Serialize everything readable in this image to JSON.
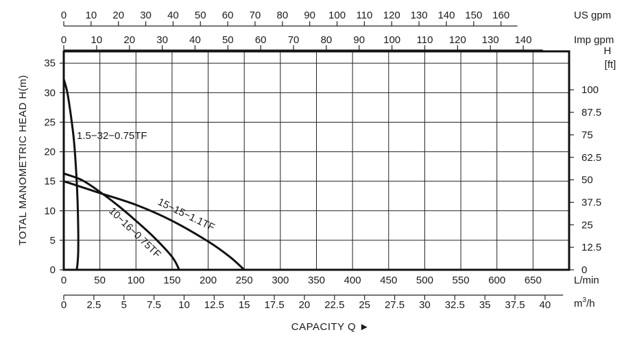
{
  "chart_data": {
    "type": "line",
    "title": "",
    "xlabel": "CAPACITY Q ►",
    "ylabel": "TOTAL MANOMETRIC HEAD H(m)",
    "right_axis_label": "H\n[ft]",
    "right_axis_label_lines": [
      "H",
      "[ft]"
    ],
    "x_unit": "L/min",
    "xlim": [
      0,
      700
    ],
    "ylim": [
      0,
      37
    ],
    "grid": true,
    "x_ticks": [
      0,
      50,
      100,
      150,
      200,
      250,
      300,
      350,
      400,
      450,
      500,
      550,
      600,
      650
    ],
    "y_ticks": [
      0,
      5,
      10,
      15,
      20,
      25,
      30,
      35
    ],
    "right_ticks": [
      "0",
      "12.5",
      "25",
      "37.5",
      "50",
      "62.5",
      "75",
      "87.5",
      "100"
    ],
    "secondary_axes": [
      {
        "name": "US gpm",
        "ticks": [
          0,
          10,
          20,
          30,
          40,
          50,
          60,
          70,
          80,
          90,
          100,
          110,
          120,
          130,
          140,
          150,
          160
        ]
      },
      {
        "name": "Imp gpm",
        "ticks": [
          0,
          10,
          20,
          30,
          40,
          50,
          60,
          70,
          80,
          90,
          100,
          110,
          120,
          130,
          140
        ]
      },
      {
        "name": "m³/h",
        "unit_base": "m",
        "unit_sup": "3",
        "unit_suffix": "/h",
        "ticks": [
          "0",
          "2.5",
          "5",
          "7.5",
          "10",
          "12.5",
          "15",
          "17.5",
          "20",
          "22.5",
          "25",
          "27.5",
          "30",
          "32.5",
          "35",
          "37.5",
          "40"
        ]
      }
    ],
    "series": [
      {
        "name": "1.5-32-0.75TF",
        "label": "1.5−32−0.75TF",
        "x": [
          0,
          5,
          10,
          14,
          17,
          19,
          20,
          20,
          19,
          18
        ],
        "y": [
          32.3,
          30,
          26,
          22,
          17,
          12,
          7,
          3,
          1,
          0
        ]
      },
      {
        "name": "15-15-1.1TF",
        "label": "15−15−1.1TF",
        "x": [
          0,
          25,
          50,
          100,
          150,
          200,
          230,
          250
        ],
        "y": [
          15.0,
          14.0,
          13.0,
          11.0,
          8.3,
          4.8,
          2.2,
          0
        ]
      },
      {
        "name": "10-16-0.75TF",
        "label": "10−16−0.75TF",
        "x": [
          0,
          25,
          50,
          75,
          100,
          125,
          150,
          160
        ],
        "y": [
          16.3,
          15.2,
          13.2,
          10.9,
          8.3,
          5.5,
          2.2,
          0
        ]
      }
    ]
  }
}
